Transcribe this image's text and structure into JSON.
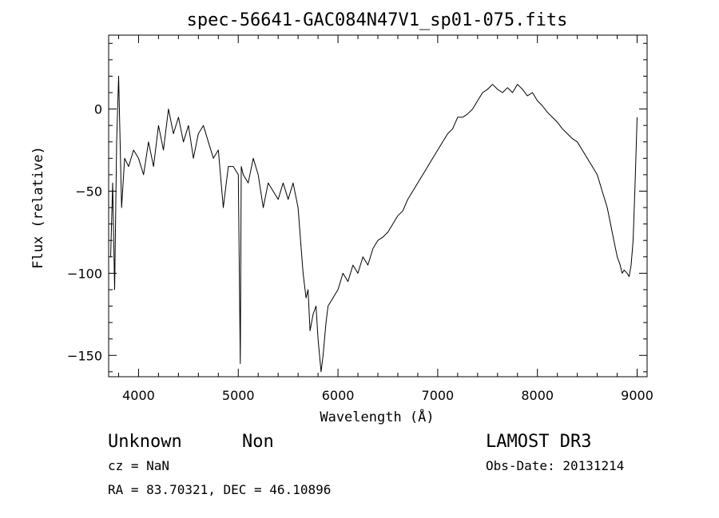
{
  "chart_data": {
    "type": "line",
    "title": "spec-56641-GAC084N47V1_sp01-075.fits",
    "xlabel": "Wavelength (Å)",
    "ylabel": "Flux (relative)",
    "xlim": [
      3700,
      9100
    ],
    "ylim": [
      -163,
      45
    ],
    "x_ticks": [
      4000,
      5000,
      6000,
      7000,
      8000,
      9000
    ],
    "y_ticks": [
      -150,
      -100,
      -50,
      0
    ],
    "grid": false,
    "series": [
      {
        "color": "#000000",
        "x": [
          3720,
          3740,
          3760,
          3780,
          3800,
          3830,
          3860,
          3900,
          3950,
          4000,
          4050,
          4100,
          4150,
          4200,
          4250,
          4300,
          4350,
          4400,
          4450,
          4500,
          4550,
          4600,
          4650,
          4700,
          4750,
          4800,
          4850,
          4900,
          4950,
          5000,
          5020,
          5030,
          5050,
          5100,
          5150,
          5200,
          5250,
          5300,
          5350,
          5400,
          5450,
          5500,
          5550,
          5600,
          5650,
          5680,
          5700,
          5720,
          5750,
          5780,
          5800,
          5830,
          5850,
          5880,
          5900,
          5950,
          6000,
          6050,
          6100,
          6150,
          6200,
          6250,
          6300,
          6350,
          6400,
          6450,
          6500,
          6550,
          6600,
          6650,
          6700,
          6750,
          6800,
          6850,
          6900,
          6950,
          7000,
          7050,
          7100,
          7150,
          7200,
          7250,
          7300,
          7350,
          7400,
          7450,
          7500,
          7550,
          7600,
          7650,
          7700,
          7750,
          7800,
          7850,
          7900,
          7950,
          8000,
          8050,
          8100,
          8150,
          8200,
          8250,
          8300,
          8350,
          8400,
          8450,
          8500,
          8550,
          8600,
          8650,
          8700,
          8750,
          8800,
          8830,
          8850,
          8870,
          8900,
          8920,
          8940,
          8960,
          8980,
          9000
        ],
        "y": [
          -90,
          -45,
          -110,
          -20,
          20,
          -60,
          -30,
          -35,
          -25,
          -30,
          -40,
          -20,
          -35,
          -10,
          -25,
          0,
          -15,
          -5,
          -20,
          -10,
          -30,
          -15,
          -10,
          -20,
          -30,
          -25,
          -60,
          -35,
          -35,
          -40,
          -155,
          -35,
          -40,
          -45,
          -30,
          -40,
          -60,
          -45,
          -50,
          -55,
          -45,
          -55,
          -45,
          -60,
          -100,
          -115,
          -110,
          -135,
          -125,
          -120,
          -140,
          -160,
          -150,
          -130,
          -120,
          -115,
          -110,
          -100,
          -105,
          -95,
          -100,
          -90,
          -95,
          -85,
          -80,
          -78,
          -75,
          -70,
          -65,
          -62,
          -55,
          -50,
          -45,
          -40,
          -35,
          -30,
          -25,
          -20,
          -15,
          -12,
          -5,
          -5,
          -3,
          0,
          5,
          10,
          12,
          15,
          12,
          10,
          13,
          10,
          15,
          12,
          8,
          10,
          5,
          2,
          -2,
          -5,
          -8,
          -12,
          -15,
          -18,
          -20,
          -25,
          -30,
          -35,
          -40,
          -50,
          -60,
          -75,
          -90,
          -95,
          -100,
          -98,
          -100,
          -102,
          -95,
          -80,
          -45,
          -5
        ]
      }
    ]
  },
  "footer": {
    "object_class": "Unknown",
    "subclass": "Non",
    "cz": "cz = NaN",
    "coords": "RA =  83.70321, DEC =  46.10896",
    "survey": "LAMOST DR3",
    "obs_date": "Obs-Date: 20131214"
  }
}
